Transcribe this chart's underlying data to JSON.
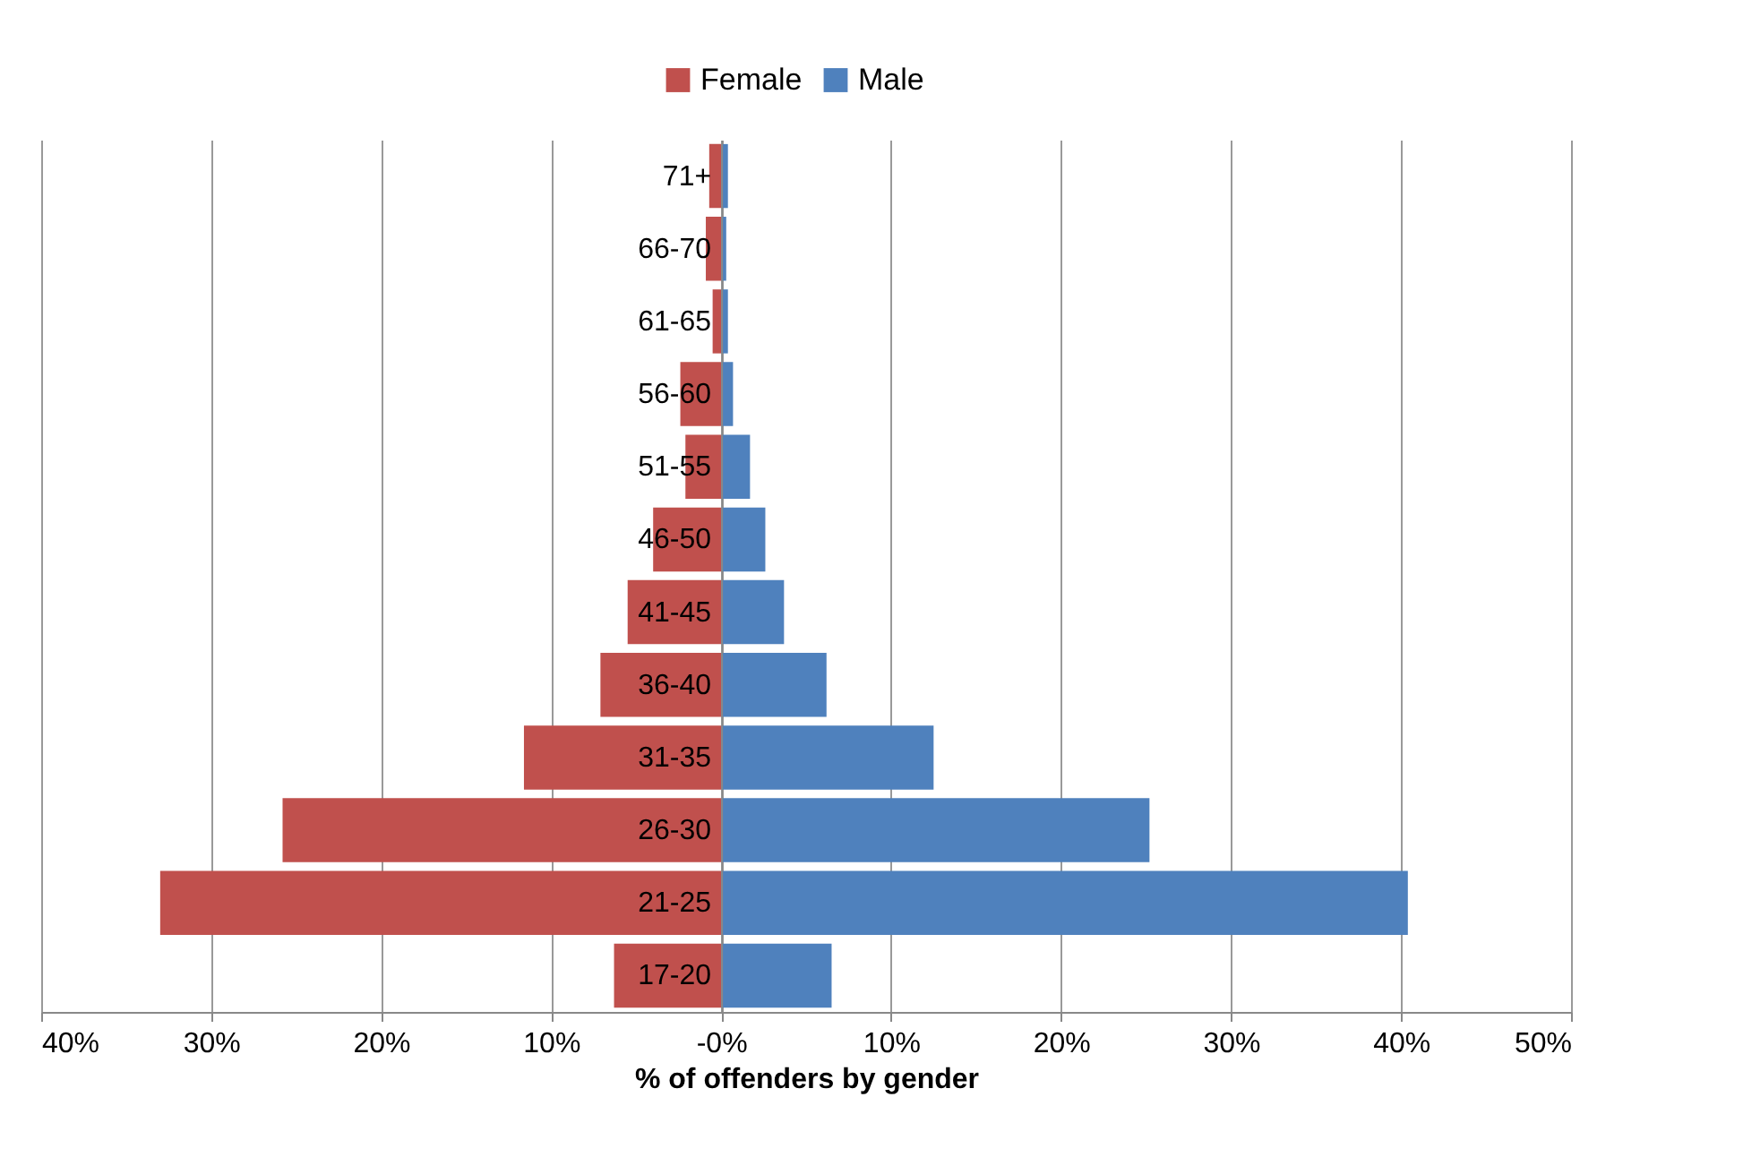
{
  "chart_data": {
    "type": "bar",
    "orientation": "horizontal",
    "stacked": true,
    "xlabel": "% of offenders by gender",
    "categories": [
      "71+",
      "66-70",
      "61-65",
      "56-60",
      "51-55",
      "46-50",
      "41-45",
      "36-40",
      "31-35",
      "26-30",
      "21-25",
      "17-20"
    ],
    "series": [
      {
        "name": "Female",
        "color": "#c0504d",
        "values": [
          -0.7,
          -0.9,
          -0.5,
          -2.4,
          -2.1,
          -4.0,
          -5.5,
          -7.1,
          -11.6,
          -25.8,
          -33.0,
          -6.3
        ]
      },
      {
        "name": "Male",
        "color": "#4f81bd",
        "values": [
          0.4,
          0.3,
          0.4,
          0.7,
          1.7,
          2.6,
          3.7,
          6.2,
          12.5,
          25.2,
          40.4,
          6.5
        ]
      }
    ],
    "xlim": [
      -40,
      50
    ],
    "xticks": [
      {
        "value": -40,
        "label": "40%"
      },
      {
        "value": -30,
        "label": "30%"
      },
      {
        "value": -20,
        "label": "20%"
      },
      {
        "value": -10,
        "label": "10%"
      },
      {
        "value": 0,
        "label": "-0%"
      },
      {
        "value": 10,
        "label": "10%"
      },
      {
        "value": 20,
        "label": "20%"
      },
      {
        "value": 30,
        "label": "30%"
      },
      {
        "value": 40,
        "label": "40%"
      },
      {
        "value": 50,
        "label": "50%"
      }
    ],
    "grid": "x",
    "legend": "top"
  }
}
